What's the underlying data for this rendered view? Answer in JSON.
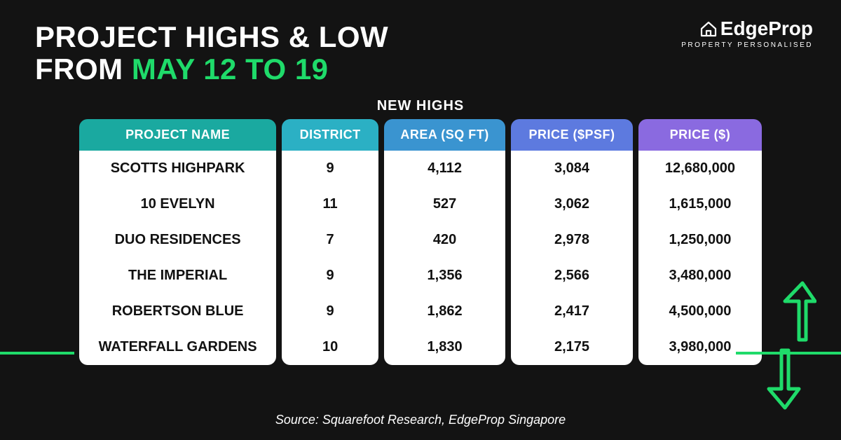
{
  "title": {
    "line1": "PROJECT HIGHS & LOW",
    "line2_prefix": "FROM ",
    "line2_accent": "MAY 12 TO 19"
  },
  "logo": {
    "brand": "EdgeProp",
    "tagline": "PROPERTY PERSONALISED"
  },
  "section_label": "NEW HIGHS",
  "columns": [
    {
      "label": "PROJECT NAME",
      "color": "#1aa9a0",
      "width_class": "col-name"
    },
    {
      "label": "DISTRICT",
      "color": "#2bb0c4",
      "width_class": "col-narrow"
    },
    {
      "label": "AREA (SQ FT)",
      "color": "#3a94d0",
      "width_class": "col-med"
    },
    {
      "label": "PRICE ($PSF)",
      "color": "#5d7adf",
      "width_class": "col-med"
    },
    {
      "label": "PRICE ($)",
      "color": "#8a6ae0",
      "width_class": "col-med"
    }
  ],
  "rows": [
    {
      "name": "SCOTTS HIGHPARK",
      "district": "9",
      "area": "4,112",
      "psf": "3,084",
      "price": "12,680,000"
    },
    {
      "name": "10 EVELYN",
      "district": "11",
      "area": "527",
      "psf": "3,062",
      "price": "1,615,000"
    },
    {
      "name": "DUO RESIDENCES",
      "district": "7",
      "area": "420",
      "psf": "2,978",
      "price": "1,250,000"
    },
    {
      "name": "THE IMPERIAL",
      "district": "9",
      "area": "1,356",
      "psf": "2,566",
      "price": "3,480,000"
    },
    {
      "name": "ROBERTSON BLUE",
      "district": "9",
      "area": "1,862",
      "psf": "2,417",
      "price": "4,500,000"
    },
    {
      "name": "WATERFALL GARDENS",
      "district": "10",
      "area": "1,830",
      "psf": "2,175",
      "price": "3,980,000"
    }
  ],
  "source": "Source: Squarefoot Research, EdgeProp Singapore",
  "colors": {
    "accent_green": "#1fdb6a",
    "background": "#131313",
    "text": "#ffffff",
    "cell_bg": "#ffffff",
    "cell_text": "#111111"
  },
  "arrows": {
    "stroke": "#1fdb6a",
    "stroke_width": 4
  }
}
